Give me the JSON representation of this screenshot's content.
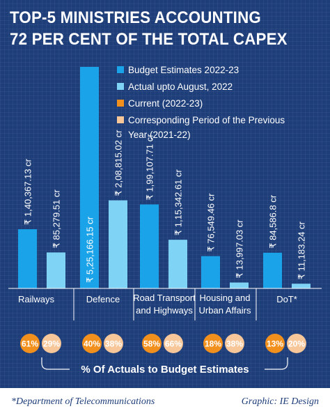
{
  "header": {
    "title_line1": "TOP-5 MINISTRIES ACCOUNTING",
    "title_line2": "72 PER CENT OF THE TOTAL CAPEX"
  },
  "legend": [
    {
      "label": "Budget Estimates 2022-23",
      "color": "#1aa3e8"
    },
    {
      "label": "Actual upto August, 2022",
      "color": "#7fd3f5"
    },
    {
      "label": "Current (2022-23)",
      "color": "#f2901e"
    },
    {
      "label": "Corresponding Period of the Previous",
      "label2": "Year (2021-22)",
      "color": "#f7c79a"
    }
  ],
  "chart_data": {
    "type": "bar",
    "categories": [
      "Railways",
      "Defence",
      "Road Transport and Highways",
      "Housing and Urban Affairs",
      "DoT*"
    ],
    "category_lines": [
      [
        "Railways"
      ],
      [
        "Defence"
      ],
      [
        "Road Transport",
        "and Highways"
      ],
      [
        "Housing and",
        "Urban Affairs"
      ],
      [
        "DoT*"
      ]
    ],
    "series": [
      {
        "name": "Budget Estimates 2022-23",
        "values": [
          140367.13,
          525166.15,
          199107.71,
          76549.46,
          84586.8
        ],
        "labels": [
          "₹ 1,40,367.13 cr",
          "₹ 5,25,166.15 cr",
          "₹ 1,99,107.71 cr",
          "₹ 76,549.46 cr",
          "₹ 84,586.8 cr"
        ],
        "color": "#1aa3e8"
      },
      {
        "name": "Actual upto August, 2022",
        "values": [
          85279.51,
          208815.02,
          115342.61,
          13997.03,
          11183.24
        ],
        "labels": [
          "₹ 85,279.51 cr",
          "₹ 2,08,815.02 cr",
          "₹ 1,15,342.61 cr",
          "₹ 13,997.03 cr",
          "₹ 11,183.24 cr"
        ],
        "color": "#7fd3f5"
      }
    ],
    "percent_actuals": {
      "title": "% Of Actuals to Budget Estimates",
      "current": {
        "name": "Current (2022-23)",
        "values": [
          61,
          40,
          58,
          18,
          13
        ],
        "labels": [
          "61%",
          "40%",
          "58%",
          "18%",
          "13%"
        ],
        "color": "#f2901e"
      },
      "previous": {
        "name": "Corresponding Period of the Previous Year (2021-22)",
        "values": [
          29,
          38,
          66,
          38,
          20
        ],
        "labels": [
          "29%",
          "38%",
          "66%",
          "38%",
          "20%"
        ],
        "color": "#f7c79a"
      }
    },
    "grid": false,
    "legend_position": "top-right"
  },
  "footer": {
    "note": "*Department of Telecommunications",
    "credit": "Graphic: IE Design"
  }
}
